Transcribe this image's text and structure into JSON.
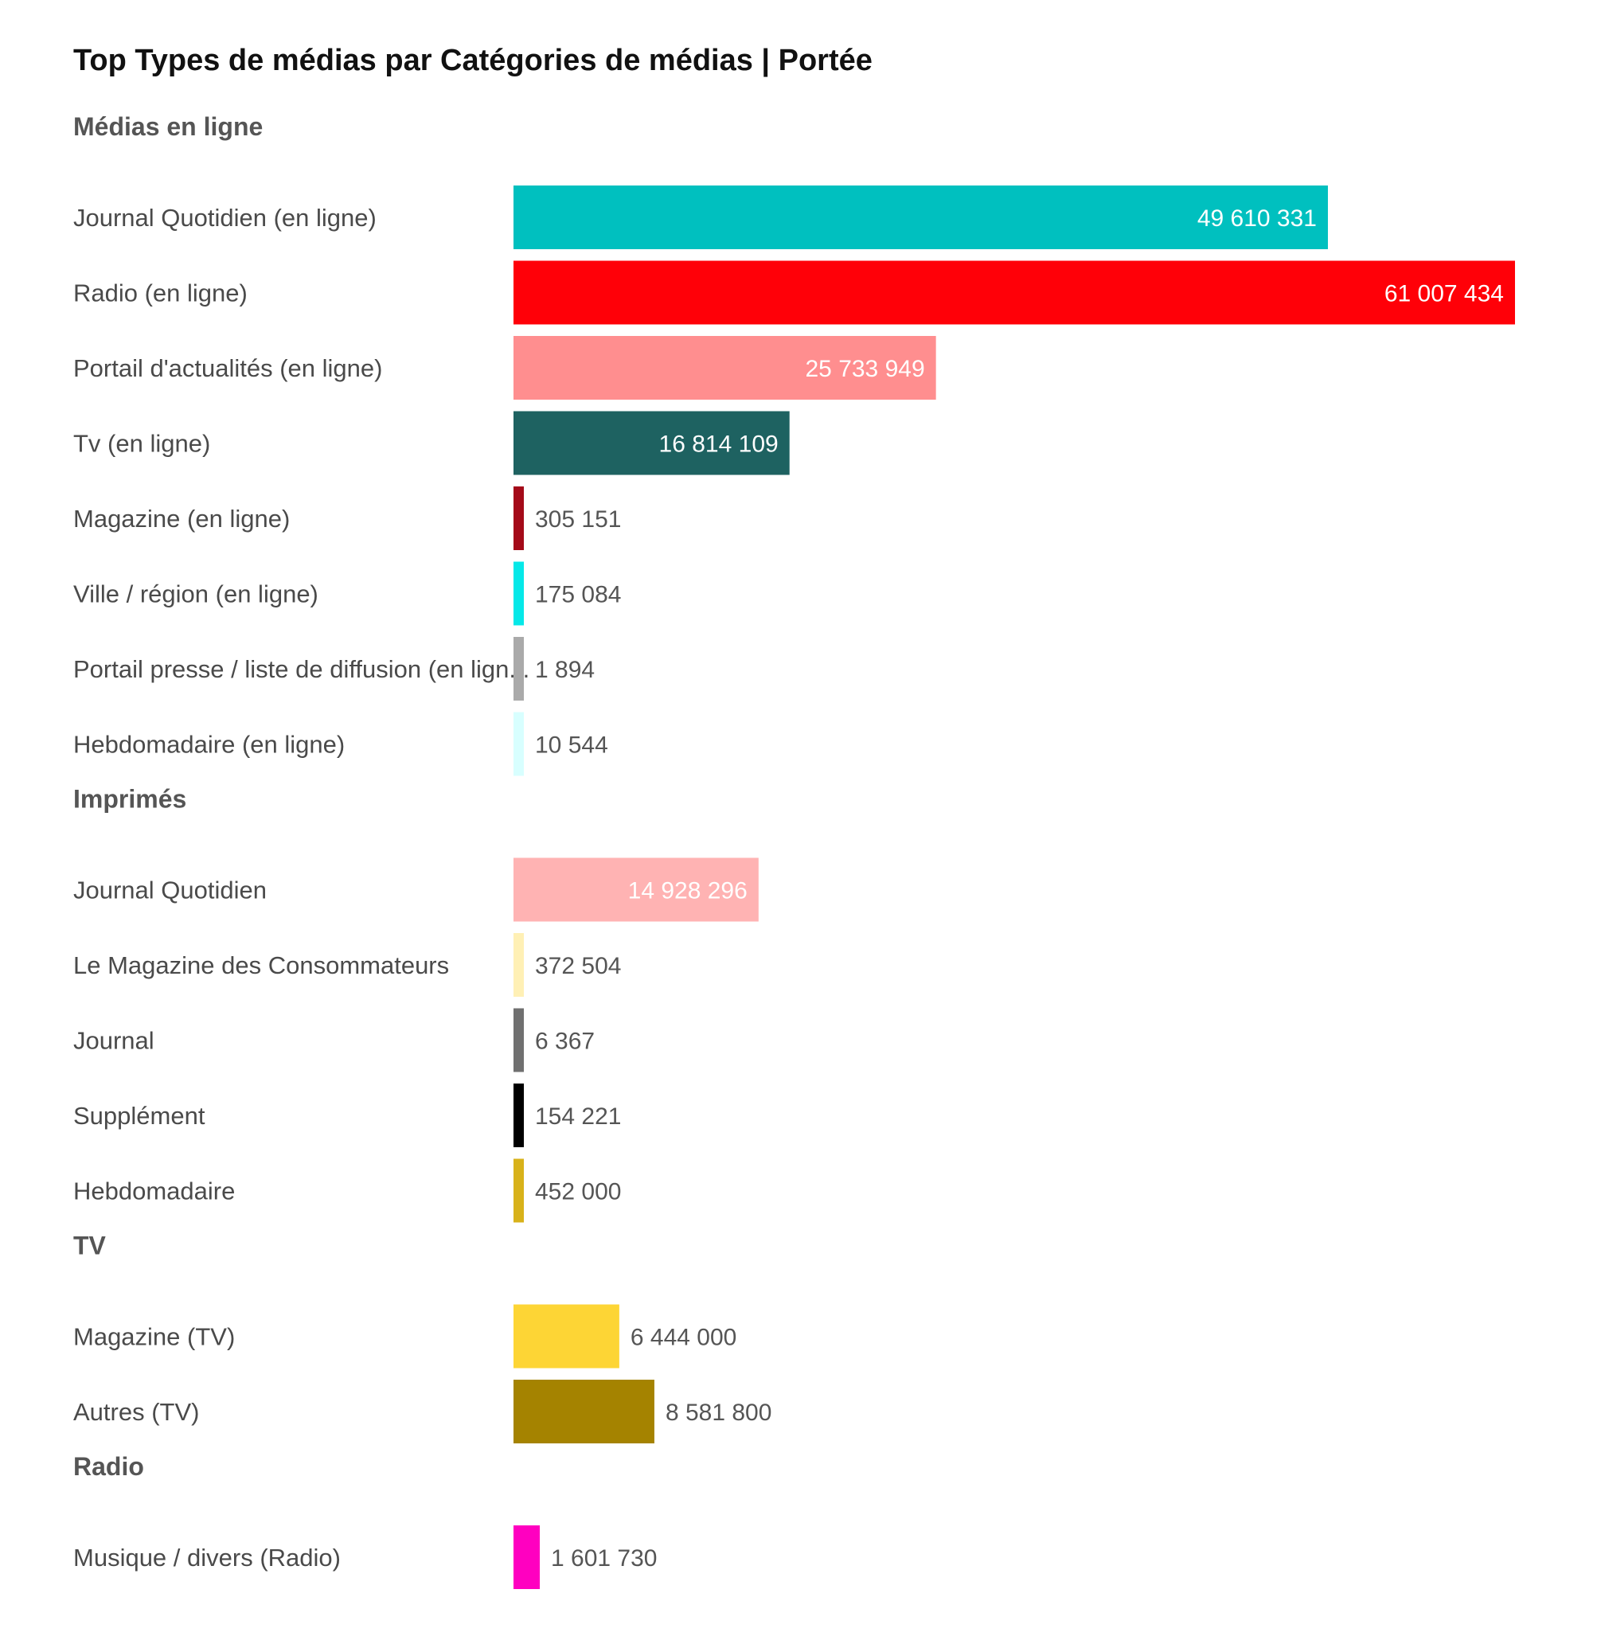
{
  "chart_data": {
    "type": "bar",
    "orientation": "horizontal",
    "title": "Top Types de médias par Catégories de médias | Portée",
    "grid": false,
    "legend": "none",
    "groups": [
      {
        "name": "Médias en ligne",
        "items": [
          {
            "label": "Journal Quotidien (en ligne)",
            "value": 49610331,
            "display": "49 610 331",
            "color": "#00c0bf"
          },
          {
            "label": "Radio (en ligne)",
            "value": 61007434,
            "display": "61 007 434",
            "color": "#ff0008"
          },
          {
            "label": "Portail d'actualités (en ligne)",
            "value": 25733949,
            "display": "25 733 949",
            "color": "#ff8e8f"
          },
          {
            "label": "Tv (en ligne)",
            "value": 16814109,
            "display": "16 814 109",
            "color": "#1e6261"
          },
          {
            "label": "Magazine (en ligne)",
            "value": 305151,
            "display": "305 151",
            "color": "#a40a19"
          },
          {
            "label": "Ville / région (en ligne)",
            "value": 175084,
            "display": "175 084",
            "color": "#05e8e8"
          },
          {
            "label": "Portail presse / liste de diffusion (en lign...",
            "value": 1894,
            "display": "1 894",
            "color": "#aaaaaa"
          },
          {
            "label": "Hebdomadaire (en ligne)",
            "value": 10544,
            "display": "10 544",
            "color": "#d8ffff"
          }
        ]
      },
      {
        "name": "Imprimés",
        "items": [
          {
            "label": "Journal Quotidien",
            "value": 14928296,
            "display": "14 928 296",
            "color": "#ffb3b3"
          },
          {
            "label": "Le Magazine des Consommateurs",
            "value": 372504,
            "display": "372 504",
            "color": "#fff0b5"
          },
          {
            "label": "Journal",
            "value": 6367,
            "display": "6 367",
            "color": "#707070"
          },
          {
            "label": "Supplément",
            "value": 154221,
            "display": "154 221",
            "color": "#000000"
          },
          {
            "label": "Hebdomadaire",
            "value": 452000,
            "display": "452 000",
            "color": "#d8b21a"
          }
        ]
      },
      {
        "name": "TV",
        "items": [
          {
            "label": "Magazine (TV)",
            "value": 6444000,
            "display": "6 444 000",
            "color": "#fdd535"
          },
          {
            "label": "Autres (TV)",
            "value": 8581800,
            "display": "8 581 800",
            "color": "#a58300"
          }
        ]
      },
      {
        "name": "Radio",
        "items": [
          {
            "label": "Musique / divers (Radio)",
            "value": 1601730,
            "display": "1 601 730",
            "color": "#ff00c0"
          }
        ]
      }
    ],
    "xlim": [
      0,
      61007434
    ]
  },
  "colors": {
    "title": "#111111",
    "group_label": "#555555",
    "category_label": "#4a4a4a",
    "value_inside": "#ffffff",
    "value_outside": "#555555"
  }
}
